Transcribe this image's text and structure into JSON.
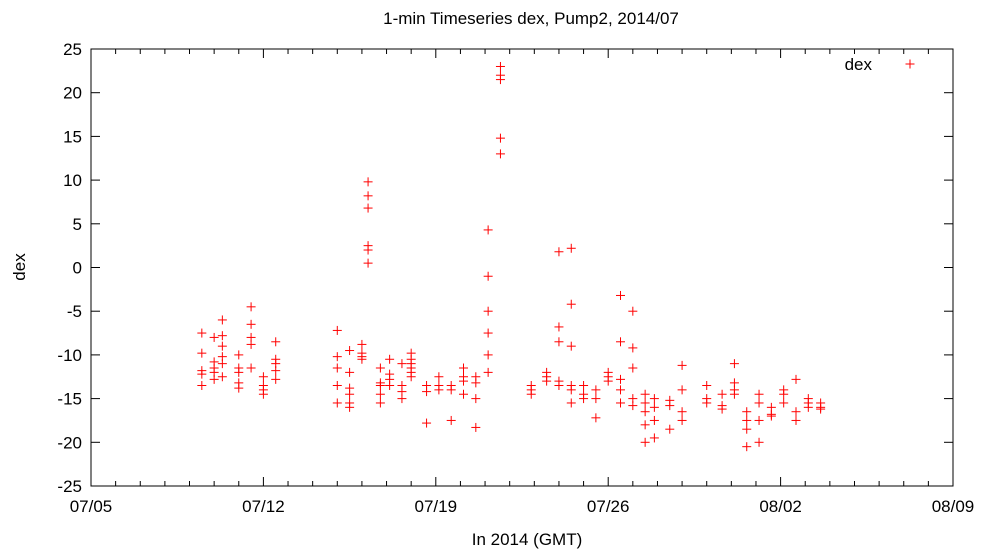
{
  "chart_data": {
    "type": "scatter",
    "title": "1-min Timeseries dex, Pump2, 2014/07",
    "xlabel": "In 2014 (GMT)",
    "ylabel": "dex",
    "x_axis": {
      "type": "date",
      "range": [
        "2014-07-05",
        "2014-08-09"
      ],
      "ticks": [
        "07/05",
        "07/12",
        "07/19",
        "07/26",
        "08/02",
        "08/09"
      ]
    },
    "ylim": [
      -25,
      25
    ],
    "yticks": [
      "-25",
      "-20",
      "-15",
      "-10",
      "-5",
      "0",
      "5",
      "10",
      "15",
      "20",
      "25"
    ],
    "grid": false,
    "legend_position": "top-right",
    "marker": "plus",
    "color": "#ff0000",
    "series": [
      {
        "name": "dex",
        "points": [
          [
            "2014-07-09T12:00",
            -7.5
          ],
          [
            "2014-07-09T12:00",
            -9.8
          ],
          [
            "2014-07-09T12:00",
            -11.8
          ],
          [
            "2014-07-09T12:00",
            -12.2
          ],
          [
            "2014-07-09T12:00",
            -13.5
          ],
          [
            "2014-07-10T00:00",
            -8.0
          ],
          [
            "2014-07-10T00:00",
            -10.8
          ],
          [
            "2014-07-10T00:00",
            -11.5
          ],
          [
            "2014-07-10T00:00",
            -12.0
          ],
          [
            "2014-07-10T00:00",
            -12.8
          ],
          [
            "2014-07-10T08:00",
            -6.0
          ],
          [
            "2014-07-10T08:00",
            -7.8
          ],
          [
            "2014-07-10T08:00",
            -9.0
          ],
          [
            "2014-07-10T08:00",
            -10.2
          ],
          [
            "2014-07-10T08:00",
            -11.0
          ],
          [
            "2014-07-10T08:00",
            -12.5
          ],
          [
            "2014-07-11T00:00",
            -10.0
          ],
          [
            "2014-07-11T00:00",
            -11.5
          ],
          [
            "2014-07-11T00:00",
            -12.0
          ],
          [
            "2014-07-11T00:00",
            -13.2
          ],
          [
            "2014-07-11T00:00",
            -13.8
          ],
          [
            "2014-07-11T12:00",
            -4.5
          ],
          [
            "2014-07-11T12:00",
            -6.5
          ],
          [
            "2014-07-11T12:00",
            -8.0
          ],
          [
            "2014-07-11T12:00",
            -8.8
          ],
          [
            "2014-07-11T12:00",
            -11.5
          ],
          [
            "2014-07-12T00:00",
            -12.5
          ],
          [
            "2014-07-12T00:00",
            -13.5
          ],
          [
            "2014-07-12T00:00",
            -14.0
          ],
          [
            "2014-07-12T00:00",
            -14.5
          ],
          [
            "2014-07-12T12:00",
            -8.5
          ],
          [
            "2014-07-12T12:00",
            -10.5
          ],
          [
            "2014-07-12T12:00",
            -11.0
          ],
          [
            "2014-07-12T12:00",
            -11.8
          ],
          [
            "2014-07-12T12:00",
            -12.8
          ],
          [
            "2014-07-15T00:00",
            -7.2
          ],
          [
            "2014-07-15T00:00",
            -10.2
          ],
          [
            "2014-07-15T00:00",
            -11.5
          ],
          [
            "2014-07-15T00:00",
            -13.5
          ],
          [
            "2014-07-15T00:00",
            -15.5
          ],
          [
            "2014-07-15T12:00",
            -9.5
          ],
          [
            "2014-07-15T12:00",
            -12.0
          ],
          [
            "2014-07-15T12:00",
            -13.8
          ],
          [
            "2014-07-15T12:00",
            -14.5
          ],
          [
            "2014-07-15T12:00",
            -15.5
          ],
          [
            "2014-07-15T12:00",
            -16.0
          ],
          [
            "2014-07-16T00:00",
            -8.8
          ],
          [
            "2014-07-16T00:00",
            -9.8
          ],
          [
            "2014-07-16T00:00",
            -10.2
          ],
          [
            "2014-07-16T00:00",
            -10.5
          ],
          [
            "2014-07-16T06:00",
            9.8
          ],
          [
            "2014-07-16T06:00",
            8.2
          ],
          [
            "2014-07-16T06:00",
            6.8
          ],
          [
            "2014-07-16T06:00",
            2.5
          ],
          [
            "2014-07-16T06:00",
            2.0
          ],
          [
            "2014-07-16T06:00",
            0.5
          ],
          [
            "2014-07-16T18:00",
            -11.5
          ],
          [
            "2014-07-16T18:00",
            -13.2
          ],
          [
            "2014-07-16T18:00",
            -13.5
          ],
          [
            "2014-07-16T18:00",
            -14.5
          ],
          [
            "2014-07-16T18:00",
            -15.5
          ],
          [
            "2014-07-17T03:00",
            -10.5
          ],
          [
            "2014-07-17T03:00",
            -12.2
          ],
          [
            "2014-07-17T03:00",
            -12.8
          ],
          [
            "2014-07-17T03:00",
            -13.5
          ],
          [
            "2014-07-17T15:00",
            -11.0
          ],
          [
            "2014-07-17T15:00",
            -13.5
          ],
          [
            "2014-07-17T15:00",
            -14.2
          ],
          [
            "2014-07-17T15:00",
            -15.0
          ],
          [
            "2014-07-18T00:00",
            -9.8
          ],
          [
            "2014-07-18T00:00",
            -10.5
          ],
          [
            "2014-07-18T00:00",
            -11.0
          ],
          [
            "2014-07-18T00:00",
            -11.5
          ],
          [
            "2014-07-18T00:00",
            -12.0
          ],
          [
            "2014-07-18T00:00",
            -12.5
          ],
          [
            "2014-07-18T15:00",
            -13.5
          ],
          [
            "2014-07-18T15:00",
            -14.2
          ],
          [
            "2014-07-18T15:00",
            -17.8
          ],
          [
            "2014-07-19T03:00",
            -12.5
          ],
          [
            "2014-07-19T03:00",
            -13.5
          ],
          [
            "2014-07-19T03:00",
            -14.0
          ],
          [
            "2014-07-19T15:00",
            -13.5
          ],
          [
            "2014-07-19T15:00",
            -14.0
          ],
          [
            "2014-07-19T15:00",
            -17.5
          ],
          [
            "2014-07-20T03:00",
            -11.5
          ],
          [
            "2014-07-20T03:00",
            -12.5
          ],
          [
            "2014-07-20T03:00",
            -13.0
          ],
          [
            "2014-07-20T03:00",
            -14.5
          ],
          [
            "2014-07-20T15:00",
            -12.5
          ],
          [
            "2014-07-20T15:00",
            -13.2
          ],
          [
            "2014-07-20T15:00",
            -15.0
          ],
          [
            "2014-07-20T15:00",
            -18.3
          ],
          [
            "2014-07-21T03:00",
            4.3
          ],
          [
            "2014-07-21T03:00",
            -1.0
          ],
          [
            "2014-07-21T03:00",
            -5.0
          ],
          [
            "2014-07-21T03:00",
            -7.5
          ],
          [
            "2014-07-21T03:00",
            -10.0
          ],
          [
            "2014-07-21T03:00",
            -12.0
          ],
          [
            "2014-07-21T15:00",
            23.0
          ],
          [
            "2014-07-21T15:00",
            22.0
          ],
          [
            "2014-07-21T15:00",
            21.5
          ],
          [
            "2014-07-21T15:00",
            14.8
          ],
          [
            "2014-07-21T15:00",
            13.0
          ],
          [
            "2014-07-22T21:00",
            -13.5
          ],
          [
            "2014-07-22T21:00",
            -14.0
          ],
          [
            "2014-07-22T21:00",
            -14.5
          ],
          [
            "2014-07-23T12:00",
            -12.0
          ],
          [
            "2014-07-23T12:00",
            -12.5
          ],
          [
            "2014-07-23T12:00",
            -13.0
          ],
          [
            "2014-07-24T00:00",
            1.8
          ],
          [
            "2014-07-24T00:00",
            -6.8
          ],
          [
            "2014-07-24T00:00",
            -8.5
          ],
          [
            "2014-07-24T00:00",
            -13.0
          ],
          [
            "2014-07-24T00:00",
            -13.5
          ],
          [
            "2014-07-24T12:00",
            2.2
          ],
          [
            "2014-07-24T12:00",
            -4.2
          ],
          [
            "2014-07-24T12:00",
            -9.0
          ],
          [
            "2014-07-24T12:00",
            -13.5
          ],
          [
            "2014-07-24T12:00",
            -14.0
          ],
          [
            "2014-07-24T12:00",
            -15.5
          ],
          [
            "2014-07-25T00:00",
            -13.5
          ],
          [
            "2014-07-25T00:00",
            -14.5
          ],
          [
            "2014-07-25T00:00",
            -15.0
          ],
          [
            "2014-07-25T12:00",
            -14.0
          ],
          [
            "2014-07-25T12:00",
            -15.0
          ],
          [
            "2014-07-25T12:00",
            -17.2
          ],
          [
            "2014-07-26T00:00",
            -12.0
          ],
          [
            "2014-07-26T00:00",
            -12.5
          ],
          [
            "2014-07-26T00:00",
            -13.0
          ],
          [
            "2014-07-26T12:00",
            -3.2
          ],
          [
            "2014-07-26T12:00",
            -8.5
          ],
          [
            "2014-07-26T12:00",
            -12.8
          ],
          [
            "2014-07-26T12:00",
            -14.0
          ],
          [
            "2014-07-26T12:00",
            -15.5
          ],
          [
            "2014-07-27T00:00",
            -5.0
          ],
          [
            "2014-07-27T00:00",
            -9.2
          ],
          [
            "2014-07-27T00:00",
            -11.5
          ],
          [
            "2014-07-27T00:00",
            -15.0
          ],
          [
            "2014-07-27T00:00",
            -15.8
          ],
          [
            "2014-07-27T12:00",
            -14.5
          ],
          [
            "2014-07-27T12:00",
            -15.5
          ],
          [
            "2014-07-27T12:00",
            -16.5
          ],
          [
            "2014-07-27T12:00",
            -18.0
          ],
          [
            "2014-07-27T12:00",
            -20.0
          ],
          [
            "2014-07-27T21:00",
            -15.0
          ],
          [
            "2014-07-27T21:00",
            -16.0
          ],
          [
            "2014-07-27T21:00",
            -17.5
          ],
          [
            "2014-07-27T21:00",
            -19.5
          ],
          [
            "2014-07-28T12:00",
            -15.2
          ],
          [
            "2014-07-28T12:00",
            -15.8
          ],
          [
            "2014-07-28T12:00",
            -18.5
          ],
          [
            "2014-07-29T00:00",
            -11.2
          ],
          [
            "2014-07-29T00:00",
            -14.0
          ],
          [
            "2014-07-29T00:00",
            -16.5
          ],
          [
            "2014-07-29T00:00",
            -17.5
          ],
          [
            "2014-07-30T00:00",
            -13.5
          ],
          [
            "2014-07-30T00:00",
            -15.0
          ],
          [
            "2014-07-30T00:00",
            -15.5
          ],
          [
            "2014-07-30T15:00",
            -14.5
          ],
          [
            "2014-07-30T15:00",
            -15.8
          ],
          [
            "2014-07-30T15:00",
            -16.2
          ],
          [
            "2014-07-31T03:00",
            -11.0
          ],
          [
            "2014-07-31T03:00",
            -13.2
          ],
          [
            "2014-07-31T03:00",
            -14.0
          ],
          [
            "2014-07-31T03:00",
            -14.5
          ],
          [
            "2014-07-31T15:00",
            -16.5
          ],
          [
            "2014-07-31T15:00",
            -17.5
          ],
          [
            "2014-07-31T15:00",
            -18.5
          ],
          [
            "2014-07-31T15:00",
            -20.5
          ],
          [
            "2014-08-01T03:00",
            -14.5
          ],
          [
            "2014-08-01T03:00",
            -15.5
          ],
          [
            "2014-08-01T03:00",
            -17.5
          ],
          [
            "2014-08-01T03:00",
            -20.0
          ],
          [
            "2014-08-01T15:00",
            -16.0
          ],
          [
            "2014-08-01T15:00",
            -16.8
          ],
          [
            "2014-08-01T15:00",
            -17.0
          ],
          [
            "2014-08-02T03:00",
            -14.0
          ],
          [
            "2014-08-02T03:00",
            -14.5
          ],
          [
            "2014-08-02T03:00",
            -15.5
          ],
          [
            "2014-08-02T15:00",
            -12.8
          ],
          [
            "2014-08-02T15:00",
            -16.5
          ],
          [
            "2014-08-02T15:00",
            -17.5
          ],
          [
            "2014-08-03T03:00",
            -15.0
          ],
          [
            "2014-08-03T03:00",
            -15.5
          ],
          [
            "2014-08-03T03:00",
            -16.0
          ],
          [
            "2014-08-03T15:00",
            -15.5
          ],
          [
            "2014-08-03T15:00",
            -16.0
          ],
          [
            "2014-08-03T15:00",
            -16.2
          ]
        ]
      }
    ]
  }
}
